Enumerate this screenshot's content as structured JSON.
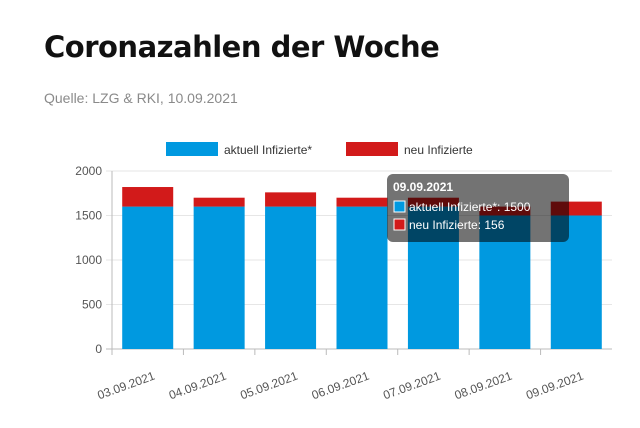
{
  "header": {
    "title": "Coronazahlen der Woche",
    "source": "Quelle: LZG & RKI, 10.09.2021"
  },
  "colors": {
    "aktuell": "#0099e0",
    "neu": "#d21a1a"
  },
  "chart_data": {
    "type": "bar",
    "stacked": true,
    "categories": [
      "03.09.2021",
      "04.09.2021",
      "05.09.2021",
      "06.09.2021",
      "07.09.2021",
      "08.09.2021",
      "09.09.2021"
    ],
    "series": [
      {
        "name": "aktuell Infizierte*",
        "values": [
          1600,
          1600,
          1600,
          1600,
          1600,
          1500,
          1500
        ]
      },
      {
        "name": "neu Infizierte",
        "values": [
          220,
          100,
          160,
          100,
          100,
          100,
          156
        ]
      }
    ],
    "ylim": [
      0,
      2000
    ],
    "yticks": [
      0,
      500,
      1000,
      1500,
      2000
    ],
    "grid": true,
    "legend": "top-center",
    "tooltip": {
      "title": "09.09.2021",
      "lines": [
        "aktuell Infizierte*: 1500",
        "neu Infizierte: 156"
      ]
    }
  }
}
